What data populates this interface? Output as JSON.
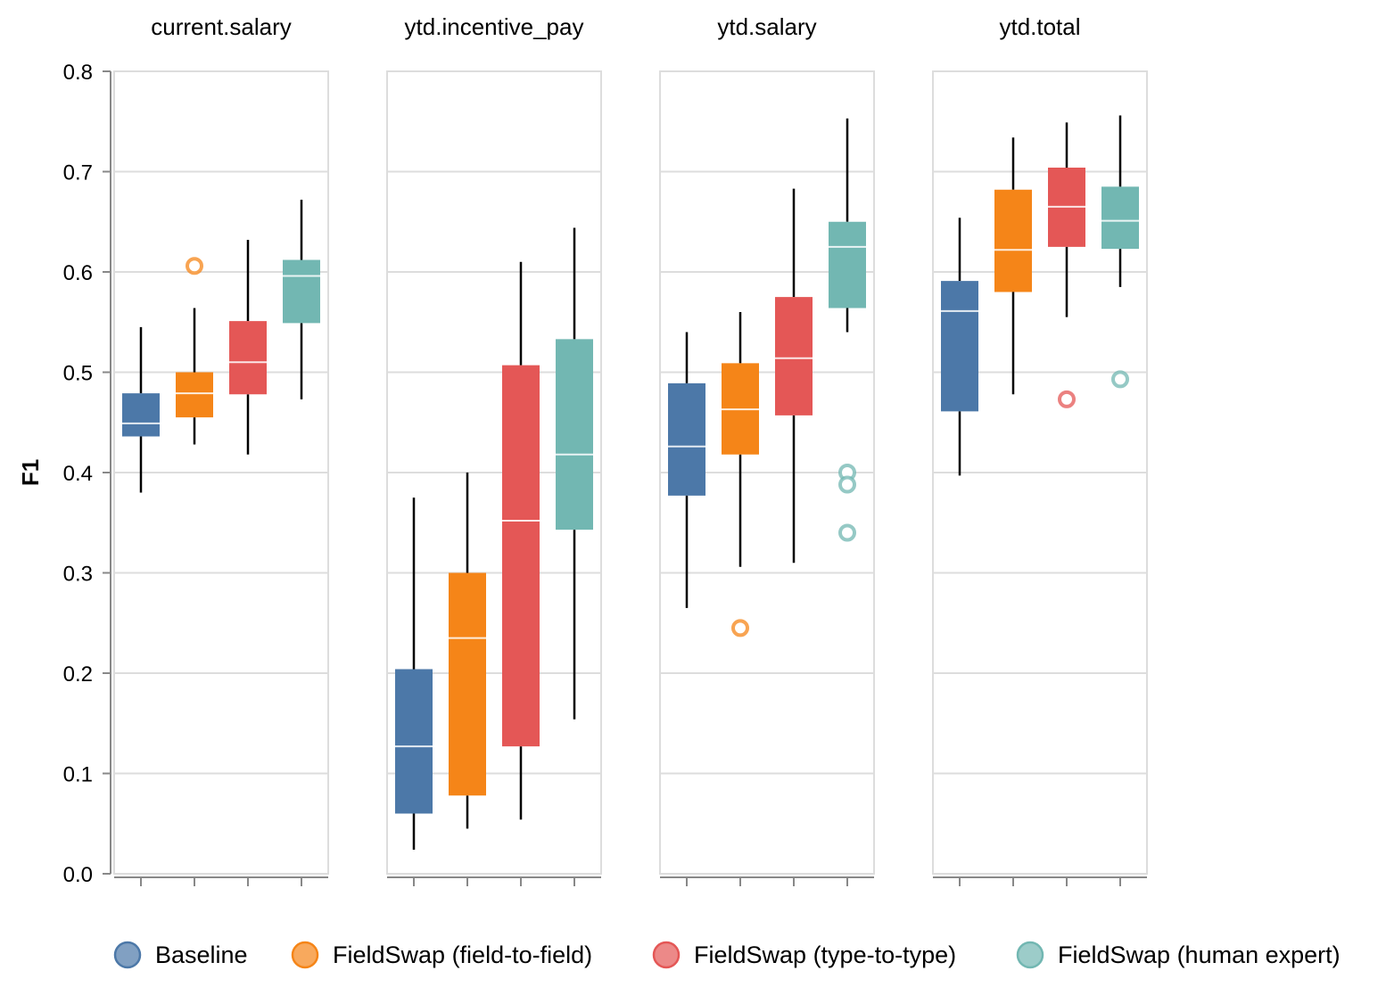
{
  "chart_data": {
    "type": "boxplot",
    "ylabel": "F1",
    "ylim": [
      0,
      0.8
    ],
    "yticks": [
      "0.0",
      "0.1",
      "0.2",
      "0.3",
      "0.4",
      "0.5",
      "0.6",
      "0.7",
      "0.8"
    ],
    "grid": true,
    "legend_position": "bottom",
    "series": [
      {
        "name": "Baseline",
        "color": "#4c78a8"
      },
      {
        "name": "FieldSwap (field-to-field)",
        "color": "#f58518"
      },
      {
        "name": "FieldSwap (type-to-type)",
        "color": "#e45756"
      },
      {
        "name": "FieldSwap (human expert)",
        "color": "#72b7b2"
      }
    ],
    "facets": [
      {
        "title": "current.salary",
        "boxes": [
          {
            "series": "Baseline",
            "min": 0.38,
            "q1": 0.436,
            "median": 0.449,
            "q3": 0.479,
            "max": 0.545,
            "outliers": []
          },
          {
            "series": "FieldSwap (field-to-field)",
            "min": 0.428,
            "q1": 0.455,
            "median": 0.479,
            "q3": 0.5,
            "max": 0.564,
            "outliers": [
              0.606
            ]
          },
          {
            "series": "FieldSwap (type-to-type)",
            "min": 0.418,
            "q1": 0.478,
            "median": 0.51,
            "q3": 0.551,
            "max": 0.632,
            "outliers": []
          },
          {
            "series": "FieldSwap (human expert)",
            "min": 0.473,
            "q1": 0.549,
            "median": 0.596,
            "q3": 0.612,
            "max": 0.672,
            "outliers": []
          }
        ]
      },
      {
        "title": "ytd.incentive_pay",
        "boxes": [
          {
            "series": "Baseline",
            "min": 0.024,
            "q1": 0.06,
            "median": 0.127,
            "q3": 0.204,
            "max": 0.375,
            "outliers": []
          },
          {
            "series": "FieldSwap (field-to-field)",
            "min": 0.045,
            "q1": 0.078,
            "median": 0.235,
            "q3": 0.3,
            "max": 0.4,
            "outliers": []
          },
          {
            "series": "FieldSwap (type-to-type)",
            "min": 0.054,
            "q1": 0.127,
            "median": 0.352,
            "q3": 0.507,
            "max": 0.61,
            "outliers": []
          },
          {
            "series": "FieldSwap (human expert)",
            "min": 0.154,
            "q1": 0.343,
            "median": 0.418,
            "q3": 0.533,
            "max": 0.644,
            "outliers": []
          }
        ]
      },
      {
        "title": "ytd.salary",
        "boxes": [
          {
            "series": "Baseline",
            "min": 0.265,
            "q1": 0.377,
            "median": 0.426,
            "q3": 0.489,
            "max": 0.54,
            "outliers": []
          },
          {
            "series": "FieldSwap (field-to-field)",
            "min": 0.306,
            "q1": 0.418,
            "median": 0.463,
            "q3": 0.509,
            "max": 0.56,
            "outliers": [
              0.245
            ]
          },
          {
            "series": "FieldSwap (type-to-type)",
            "min": 0.31,
            "q1": 0.457,
            "median": 0.514,
            "q3": 0.575,
            "max": 0.683,
            "outliers": []
          },
          {
            "series": "FieldSwap (human expert)",
            "min": 0.54,
            "q1": 0.564,
            "median": 0.625,
            "q3": 0.65,
            "max": 0.753,
            "outliers": [
              0.4,
              0.388,
              0.34
            ]
          }
        ]
      },
      {
        "title": "ytd.total",
        "boxes": [
          {
            "series": "Baseline",
            "min": 0.397,
            "q1": 0.461,
            "median": 0.561,
            "q3": 0.591,
            "max": 0.654,
            "outliers": []
          },
          {
            "series": "FieldSwap (field-to-field)",
            "min": 0.478,
            "q1": 0.58,
            "median": 0.622,
            "q3": 0.682,
            "max": 0.734,
            "outliers": []
          },
          {
            "series": "FieldSwap (type-to-type)",
            "min": 0.555,
            "q1": 0.625,
            "median": 0.665,
            "q3": 0.704,
            "max": 0.749,
            "outliers": [
              0.473
            ]
          },
          {
            "series": "FieldSwap (human expert)",
            "min": 0.585,
            "q1": 0.623,
            "median": 0.651,
            "q3": 0.685,
            "max": 0.756,
            "outliers": [
              0.493
            ]
          }
        ]
      }
    ]
  }
}
